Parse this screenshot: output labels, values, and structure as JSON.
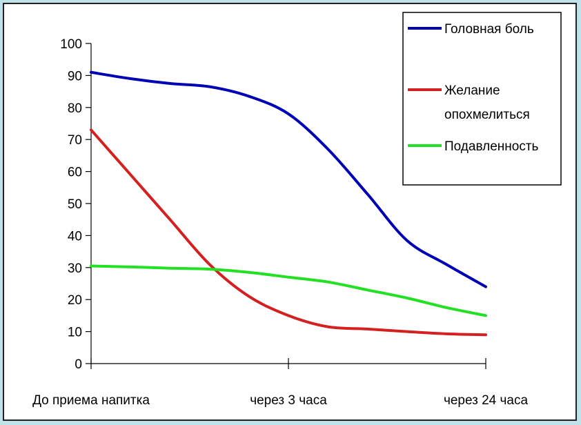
{
  "chart_data": {
    "type": "line",
    "categories": [
      "До приема напитка",
      "через 3 часа",
      "через 24 часа"
    ],
    "x": [
      0,
      0.5,
      1
    ],
    "series": [
      {
        "name": "Головная боль",
        "color": "#0000b4",
        "points": [
          [
            0,
            91
          ],
          [
            0.1,
            89
          ],
          [
            0.2,
            87.5
          ],
          [
            0.3,
            86.5
          ],
          [
            0.4,
            83.5
          ],
          [
            0.5,
            78
          ],
          [
            0.6,
            67
          ],
          [
            0.7,
            53
          ],
          [
            0.8,
            38.5
          ],
          [
            0.9,
            31
          ],
          [
            1,
            24
          ]
        ]
      },
      {
        "name": "Желание опохмелиться",
        "color": "#d42020",
        "points": [
          [
            0,
            73
          ],
          [
            0.1,
            59
          ],
          [
            0.2,
            45
          ],
          [
            0.3,
            31
          ],
          [
            0.4,
            21
          ],
          [
            0.5,
            15
          ],
          [
            0.6,
            11.5
          ],
          [
            0.7,
            10.8
          ],
          [
            0.8,
            10
          ],
          [
            0.9,
            9.3
          ],
          [
            1,
            9
          ]
        ]
      },
      {
        "name": "Подавленность",
        "color": "#22e022",
        "points": [
          [
            0,
            30.5
          ],
          [
            0.1,
            30.2
          ],
          [
            0.2,
            29.8
          ],
          [
            0.3,
            29.5
          ],
          [
            0.4,
            28.5
          ],
          [
            0.5,
            27
          ],
          [
            0.6,
            25.5
          ],
          [
            0.7,
            23
          ],
          [
            0.8,
            20.5
          ],
          [
            0.9,
            17.5
          ],
          [
            1,
            15
          ]
        ]
      }
    ],
    "yticks": [
      "0",
      "10",
      "20",
      "30",
      "40",
      "50",
      "60",
      "70",
      "80",
      "90",
      "100"
    ],
    "ylim": [
      0,
      100
    ],
    "grid": false,
    "legend_position": "top-right",
    "title": "",
    "xlabel": "",
    "ylabel": ""
  }
}
